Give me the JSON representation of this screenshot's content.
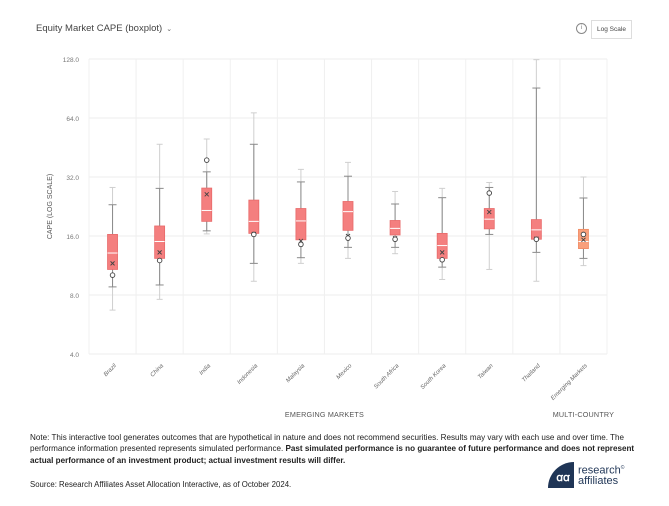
{
  "header": {
    "title": "Equity Market CAPE (boxplot)",
    "dropdown_icon": "chevron-down-icon",
    "info_icon": "info-icon",
    "log_scale_button": "Log Scale"
  },
  "chart_data": {
    "type": "boxplot",
    "title": "Equity Market CAPE (boxplot)",
    "ylabel": "CAPE (LOG SCALE)",
    "yscale": "log2",
    "ylim": [
      4,
      128
    ],
    "yticks": [
      4,
      8,
      16,
      32,
      64,
      128
    ],
    "ytick_labels": [
      "4.0",
      "8.0",
      "16.0",
      "32.0",
      "64.0",
      "128.0"
    ],
    "grid": true,
    "groups": [
      {
        "label": "EMERGING MARKETS",
        "categories": [
          "Brazil",
          "China",
          "India",
          "Indonesia",
          "Malaysia",
          "Mexico",
          "South Africa",
          "South Korea",
          "Taiwan",
          "Thailand"
        ]
      },
      {
        "label": "MULTI-COUNTRY",
        "categories": [
          "Emerging Markets"
        ]
      }
    ],
    "legend": "none",
    "series": [
      {
        "name": "Brazil",
        "min": 6.7,
        "whisker_low": 8.8,
        "q1": 10.8,
        "median": 13.1,
        "q3": 16.3,
        "whisker_high": 23.1,
        "max": 28.3,
        "current": 10.1,
        "mean": 11.6,
        "color": "#f47f7f"
      },
      {
        "name": "China",
        "min": 7.6,
        "whisker_low": 9.0,
        "q1": 12.3,
        "median": 15.0,
        "q3": 18.0,
        "whisker_high": 28.0,
        "max": 47.0,
        "current": 12.0,
        "mean": 13.2,
        "color": "#f47f7f"
      },
      {
        "name": "India",
        "min": 16.4,
        "whisker_low": 17.0,
        "q1": 19.0,
        "median": 21.6,
        "q3": 28.1,
        "whisker_high": 34.0,
        "max": 50.0,
        "current": 39.0,
        "mean": 26.1,
        "color": "#f47f7f"
      },
      {
        "name": "Indonesia",
        "min": 9.4,
        "whisker_low": 11.6,
        "q1": 16.5,
        "median": 19.0,
        "q3": 24.4,
        "whisker_high": 47.0,
        "max": 68.0,
        "current": 16.3,
        "mean": 16.4,
        "color": "#f47f7f"
      },
      {
        "name": "Malaysia",
        "min": 11.6,
        "whisker_low": 12.4,
        "q1": 15.3,
        "median": 19.1,
        "q3": 22.1,
        "whisker_high": 30.2,
        "max": 35.0,
        "current": 14.5,
        "mean": 15.1,
        "color": "#f47f7f"
      },
      {
        "name": "Mexico",
        "min": 12.3,
        "whisker_low": 14.0,
        "q1": 17.1,
        "median": 21.3,
        "q3": 24.0,
        "whisker_high": 32.3,
        "max": 38.0,
        "current": 15.6,
        "mean": 16.0,
        "color": "#f47f7f"
      },
      {
        "name": "South Africa",
        "min": 13.0,
        "whisker_low": 14.0,
        "q1": 16.2,
        "median": 17.5,
        "q3": 19.2,
        "whisker_high": 23.3,
        "max": 27.0,
        "current": 15.4,
        "mean": 15.6,
        "color": "#f47f7f"
      },
      {
        "name": "South Korea",
        "min": 9.6,
        "whisker_low": 11.1,
        "q1": 12.3,
        "median": 14.3,
        "q3": 16.5,
        "whisker_high": 25.1,
        "max": 28.0,
        "current": 12.1,
        "mean": 13.2,
        "color": "#f47f7f"
      },
      {
        "name": "Taiwan",
        "min": 10.8,
        "whisker_low": 16.3,
        "q1": 17.4,
        "median": 19.5,
        "q3": 22.1,
        "whisker_high": 28.3,
        "max": 30.0,
        "current": 26.5,
        "mean": 21.2,
        "color": "#f47f7f"
      },
      {
        "name": "Thailand",
        "min": 9.4,
        "whisker_low": 13.2,
        "q1": 15.4,
        "median": 17.2,
        "q3": 19.4,
        "whisker_high": 91.0,
        "max": 127.0,
        "current": 15.4,
        "mean": 15.5,
        "color": "#f47f7f"
      },
      {
        "name": "Emerging Markets",
        "min": 11.3,
        "whisker_low": 12.3,
        "q1": 13.8,
        "median": 15.0,
        "q3": 17.3,
        "whisker_high": 25.0,
        "max": 32.0,
        "current": 16.3,
        "mean": 15.3,
        "color": "#f9a07c"
      }
    ]
  },
  "footer": {
    "note_plain": "Note: This interactive tool generates outcomes that are hypothetical in nature and does not recommend securities. Results may vary with each use and over time. The performance information presented represents simulated performance. ",
    "note_bold": "Past simulated performance is no guarantee of future performance and does not represent actual performance of an investment product; actual investment results will differ.",
    "source": "Source: Research Affiliates Asset Allocation Interactive, as of October 2024.",
    "logo_line1": "research",
    "logo_line2": "affiliates",
    "logo_mark": "ꭤꭤ"
  }
}
